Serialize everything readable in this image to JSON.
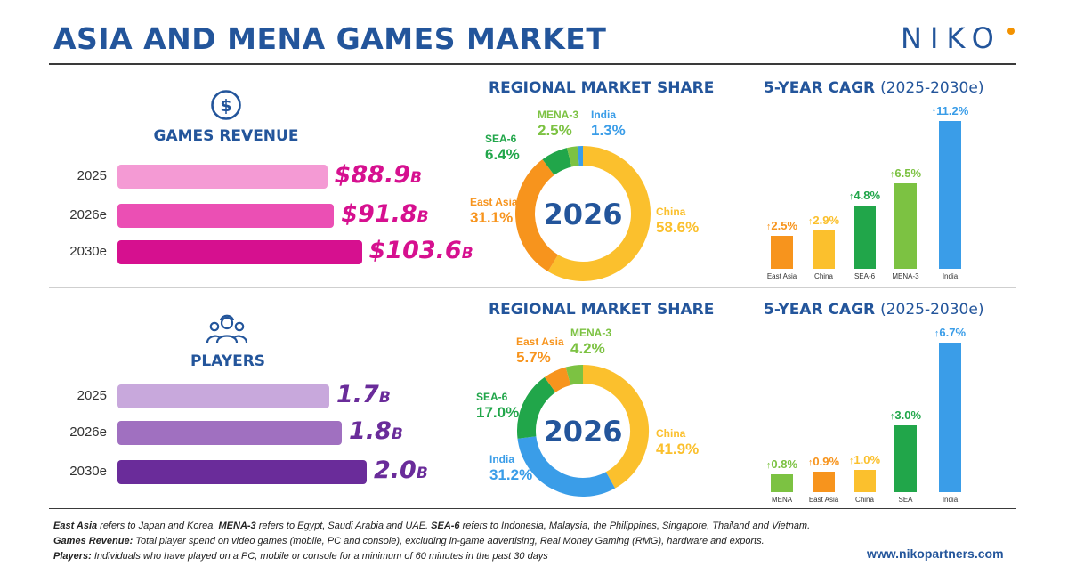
{
  "header": {
    "title": "ASIA AND MENA GAMES MARKET",
    "brand": "NIKO"
  },
  "revenue": {
    "heading": "GAMES REVENUE",
    "bars": [
      {
        "year": "2025",
        "value": 88.9,
        "label": "$88.9",
        "unit": "B",
        "color": "#f49ad4"
      },
      {
        "year": "2026e",
        "value": 91.8,
        "label": "$91.8",
        "unit": "B",
        "color": "#eb4fb4"
      },
      {
        "year": "2030e",
        "value": 103.6,
        "label": "$103.6",
        "unit": "B",
        "color": "#d6108f"
      }
    ],
    "value_color": "#d6108f"
  },
  "players": {
    "heading": "PLAYERS",
    "bars": [
      {
        "year": "2025",
        "value": 1.7,
        "label": "1.7",
        "unit": "B",
        "color": "#c8a8dc"
      },
      {
        "year": "2026e",
        "value": 1.8,
        "label": "1.8",
        "unit": "B",
        "color": "#a070c0"
      },
      {
        "year": "2030e",
        "value": 2.0,
        "label": "2.0",
        "unit": "B",
        "color": "#6a2c9a"
      }
    ],
    "value_color": "#6a2c9a"
  },
  "share_heading_top": "REGIONAL MARKET SHARE",
  "share_heading_bottom": "REGIONAL MARKET SHARE",
  "cagr_heading_top": {
    "main": "5-YEAR CAGR",
    "sub": "(2025-2030e)"
  },
  "cagr_heading_bottom": {
    "main": "5-YEAR CAGR",
    "sub": "(2025-2030e)"
  },
  "chart_data": [
    {
      "type": "pie",
      "title": "REGIONAL MARKET SHARE",
      "center_label": "2026",
      "slices": [
        {
          "name": "China",
          "value": 58.6,
          "label": "58.6%",
          "color": "#fbc02d"
        },
        {
          "name": "East Asia",
          "value": 31.1,
          "label": "31.1%",
          "color": "#f7941d"
        },
        {
          "name": "SEA-6",
          "value": 6.4,
          "label": "6.4%",
          "color": "#21a64a"
        },
        {
          "name": "MENA-3",
          "value": 2.5,
          "label": "2.5%",
          "color": "#7cc242"
        },
        {
          "name": "India",
          "value": 1.3,
          "label": "1.3%",
          "color": "#3a9de8"
        }
      ]
    },
    {
      "type": "bar",
      "title": "5-YEAR CAGR (2025-2030e)",
      "categories": [
        "East Asia",
        "China",
        "SEA-6",
        "MENA-3",
        "India"
      ],
      "values": [
        2.5,
        2.9,
        4.8,
        6.5,
        11.2
      ],
      "labels": [
        "2.5%",
        "2.9%",
        "4.8%",
        "6.5%",
        "11.2%"
      ],
      "colors": [
        "#f7941d",
        "#fbc02d",
        "#21a64a",
        "#7cc242",
        "#3a9de8"
      ]
    },
    {
      "type": "pie",
      "title": "REGIONAL MARKET SHARE",
      "center_label": "2026",
      "slices": [
        {
          "name": "China",
          "value": 41.9,
          "label": "41.9%",
          "color": "#fbc02d"
        },
        {
          "name": "India",
          "value": 31.2,
          "label": "31.2%",
          "color": "#3a9de8"
        },
        {
          "name": "SEA-6",
          "value": 17.0,
          "label": "17.0%",
          "color": "#21a64a"
        },
        {
          "name": "East Asia",
          "value": 5.7,
          "label": "5.7%",
          "color": "#f7941d"
        },
        {
          "name": "MENA-3",
          "value": 4.2,
          "label": "4.2%",
          "color": "#7cc242"
        }
      ]
    },
    {
      "type": "bar",
      "title": "5-YEAR CAGR (2025-2030e)",
      "categories": [
        "MENA",
        "East Asia",
        "China",
        "SEA",
        "India"
      ],
      "values": [
        0.8,
        0.9,
        1.0,
        3.0,
        6.7
      ],
      "labels": [
        "0.8%",
        "0.9%",
        "1.0%",
        "3.0%",
        "6.7%"
      ],
      "colors": [
        "#7cc242",
        "#f7941d",
        "#fbc02d",
        "#21a64a",
        "#3a9de8"
      ]
    }
  ],
  "footnotes": [
    {
      "term": "East Asia",
      "text": " refers to Japan and Korea. "
    },
    {
      "term": "MENA-3",
      "text": " refers to Egypt, Saudi Arabia and UAE. "
    },
    {
      "term": "SEA-6",
      "text": " refers to Indonesia, Malaysia, the Philippines, Singapore, Thailand and Vietnam."
    },
    {
      "term": "Games Revenue:",
      "text": " Total player spend on video games (mobile, PC and console), excluding in-game advertising, Real Money Gaming (RMG), hardware and exports."
    },
    {
      "term": "Players:",
      "text": " Individuals who have played on a PC, mobile or console for a minimum of 60 minutes in the past 30 days"
    }
  ],
  "url": "www.nikopartners.com"
}
